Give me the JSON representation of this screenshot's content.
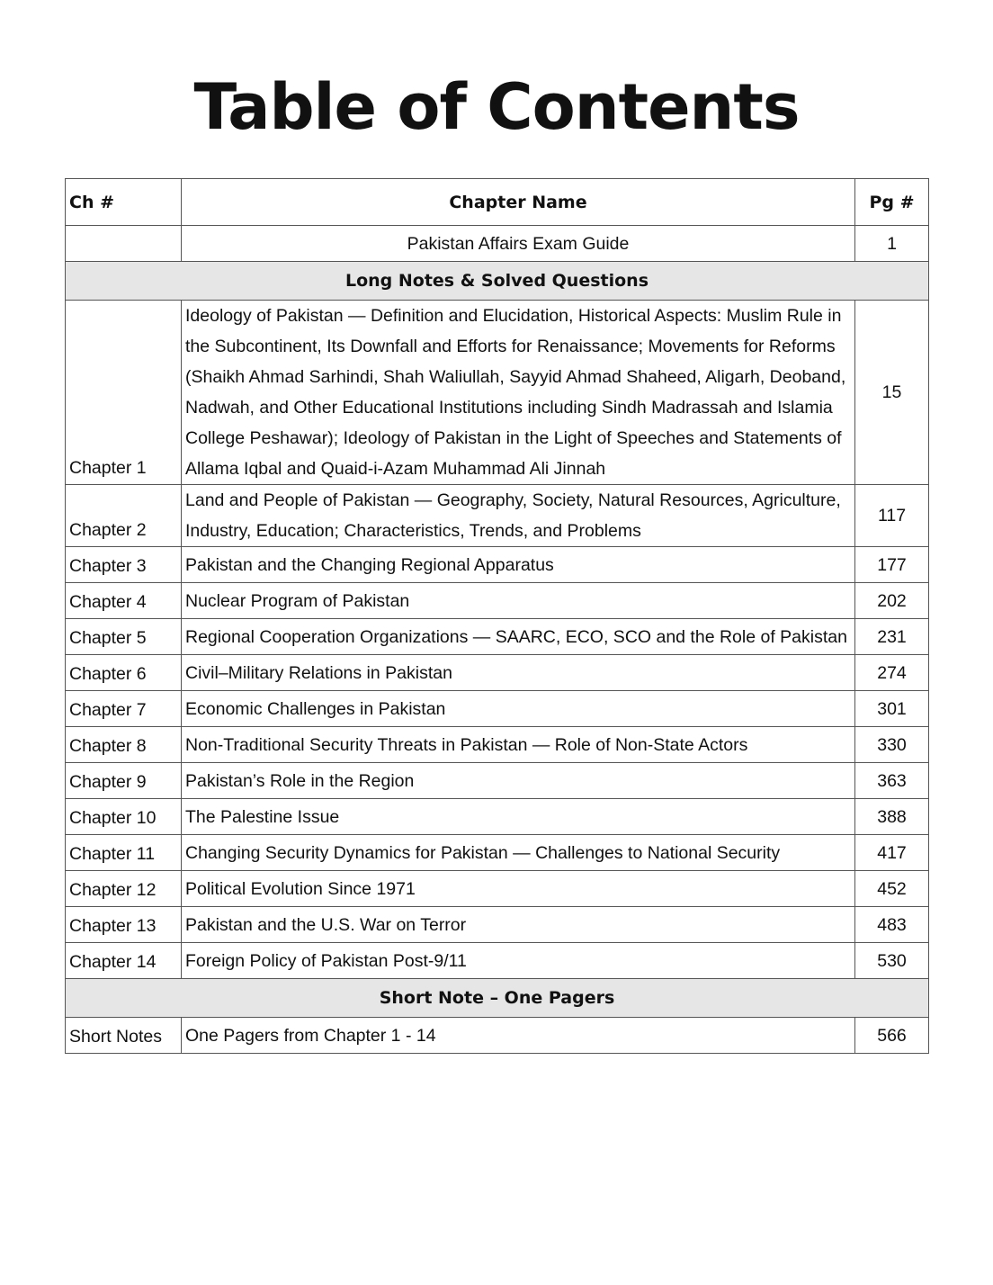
{
  "title": "Table of Contents",
  "headers": {
    "ch": "Ch #",
    "name": "Chapter Name",
    "pg": "Pg #"
  },
  "intro": {
    "ch": "",
    "name": "Pakistan Affairs Exam Guide",
    "pg": "1"
  },
  "section1": "Long Notes & Solved Questions",
  "chapters": [
    {
      "ch": "Chapter 1",
      "name": "Ideology of Pakistan — Definition and Elucidation, Historical Aspects: Muslim Rule in the Subcontinent, Its Downfall and Efforts for Renaissance; Movements for Reforms (Shaikh Ahmad Sarhindi, Shah Waliullah, Sayyid Ahmad Shaheed, Aligarh, Deoband, Nadwah, and Other Educational Institutions including Sindh Madrassah and Islamia College Peshawar); Ideology of Pakistan in the Light of Speeches and Statements of Allama Iqbal and Quaid-i-Azam Muhammad Ali Jinnah",
      "pg": "15"
    },
    {
      "ch": "Chapter 2",
      "name": "Land and People of Pakistan — Geography, Society, Natural Resources, Agriculture, Industry, Education; Characteristics, Trends, and Problems",
      "pg": "117"
    },
    {
      "ch": "Chapter 3",
      "name": "Pakistan and the Changing Regional Apparatus",
      "pg": "177"
    },
    {
      "ch": "Chapter 4",
      "name": "Nuclear Program of Pakistan",
      "pg": "202"
    },
    {
      "ch": "Chapter 5",
      "name": "Regional Cooperation Organizations — SAARC, ECO, SCO and the Role of Pakistan",
      "pg": "231"
    },
    {
      "ch": "Chapter 6",
      "name": "Civil–Military Relations in Pakistan",
      "pg": "274"
    },
    {
      "ch": "Chapter 7",
      "name": "Economic Challenges in Pakistan",
      "pg": "301"
    },
    {
      "ch": "Chapter 8",
      "name": "Non-Traditional Security Threats in Pakistan — Role of Non-State Actors",
      "pg": "330"
    },
    {
      "ch": "Chapter 9",
      "name": "Pakistan’s Role in the Region",
      "pg": "363"
    },
    {
      "ch": "Chapter 10",
      "name": "The Palestine Issue",
      "pg": "388"
    },
    {
      "ch": "Chapter 11",
      "name": "Changing Security Dynamics for Pakistan — Challenges to National Security",
      "pg": "417"
    },
    {
      "ch": "Chapter 12",
      "name": "Political Evolution Since 1971",
      "pg": "452"
    },
    {
      "ch": "Chapter 13",
      "name": "Pakistan and the U.S. War on Terror",
      "pg": "483"
    },
    {
      "ch": "Chapter 14",
      "name": "Foreign Policy of Pakistan Post-9/11",
      "pg": "530"
    }
  ],
  "section2": "Short Note – One Pagers",
  "short": {
    "ch": "Short Notes",
    "name": "One Pagers from Chapter 1 - 14",
    "pg": "566"
  }
}
